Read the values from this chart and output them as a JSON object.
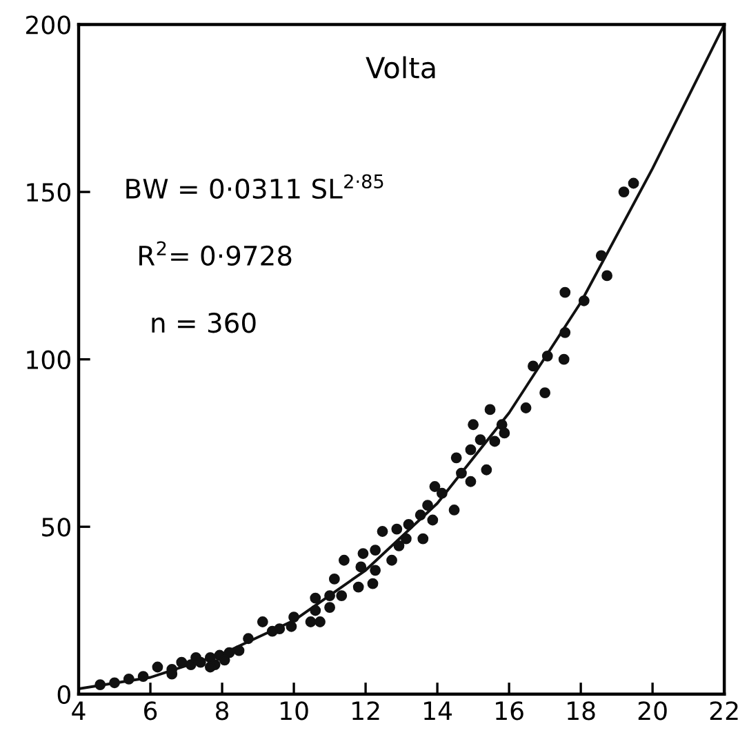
{
  "chart_data": {
    "type": "scatter",
    "title": "Volta",
    "xlim": [
      4,
      22
    ],
    "ylim": [
      0,
      200
    ],
    "xticks": [
      4,
      6,
      8,
      10,
      12,
      14,
      16,
      18,
      20,
      22
    ],
    "yticks": [
      0,
      50,
      100,
      150,
      200
    ],
    "grid": false,
    "legend": false,
    "marker": "circle",
    "annotations": [
      "BW = 0·0311 SL$^{2·85}$",
      "R$^{2}$= 0·9728",
      "n = 360"
    ],
    "series": [
      {
        "color": "#111111",
        "x": [
          19.2,
          19.47,
          18.57,
          18.73,
          17.56,
          18.09,
          17.56,
          17.53,
          17.07,
          16.67,
          17.0,
          16.47,
          15.47,
          15.0,
          15.8,
          15.87,
          15.6,
          15.2,
          14.93,
          14.53,
          15.37,
          14.93,
          14.67,
          13.93,
          14.13,
          14.47,
          13.87,
          13.73,
          13.53,
          13.2,
          13.6,
          12.87,
          12.47,
          13.13,
          12.93,
          12.73,
          12.27,
          11.93,
          11.87,
          12.27,
          11.8,
          12.2,
          11.4,
          11.13,
          11.0,
          11.33,
          10.6,
          11.0,
          10.6,
          10.47,
          10.73,
          10.0,
          9.93,
          9.6,
          9.13,
          9.4,
          8.73,
          8.47,
          8.2,
          7.93,
          7.67,
          7.4,
          7.13,
          6.87,
          6.6,
          6.6,
          6.2,
          5.8,
          5.4,
          5.0,
          4.6,
          7.8,
          8.07,
          7.27,
          7.67
        ],
        "values": [
          150,
          152.6,
          131,
          125,
          120,
          117.5,
          108,
          100,
          101,
          98,
          90,
          85.5,
          85,
          80.5,
          80.5,
          78,
          75.5,
          76,
          73,
          70.6,
          67,
          63.5,
          66,
          62,
          60,
          55,
          52,
          56.4,
          53.5,
          50.7,
          46.4,
          49.3,
          48.6,
          46.4,
          44.3,
          40,
          43,
          42,
          38,
          37,
          32,
          33,
          40,
          34.4,
          29.4,
          29.4,
          28.7,
          25.9,
          25,
          21.6,
          21.6,
          23,
          20.2,
          19.5,
          21.6,
          18.8,
          16.6,
          13,
          12.4,
          11.6,
          10.9,
          9.5,
          8.8,
          9.5,
          7.4,
          6,
          8.1,
          5.3,
          4.5,
          3.4,
          2.8,
          8.8,
          10.2,
          10.9,
          8.1
        ]
      },
      {
        "type": "line",
        "color": "#111111",
        "marker": "none",
        "line_style": "solid",
        "x": [
          4,
          6,
          8,
          10,
          12,
          14,
          16,
          18,
          20,
          22
        ],
        "values": [
          1.6,
          5.0,
          12.0,
          22,
          37,
          57,
          84,
          117,
          157,
          200
        ]
      }
    ]
  }
}
